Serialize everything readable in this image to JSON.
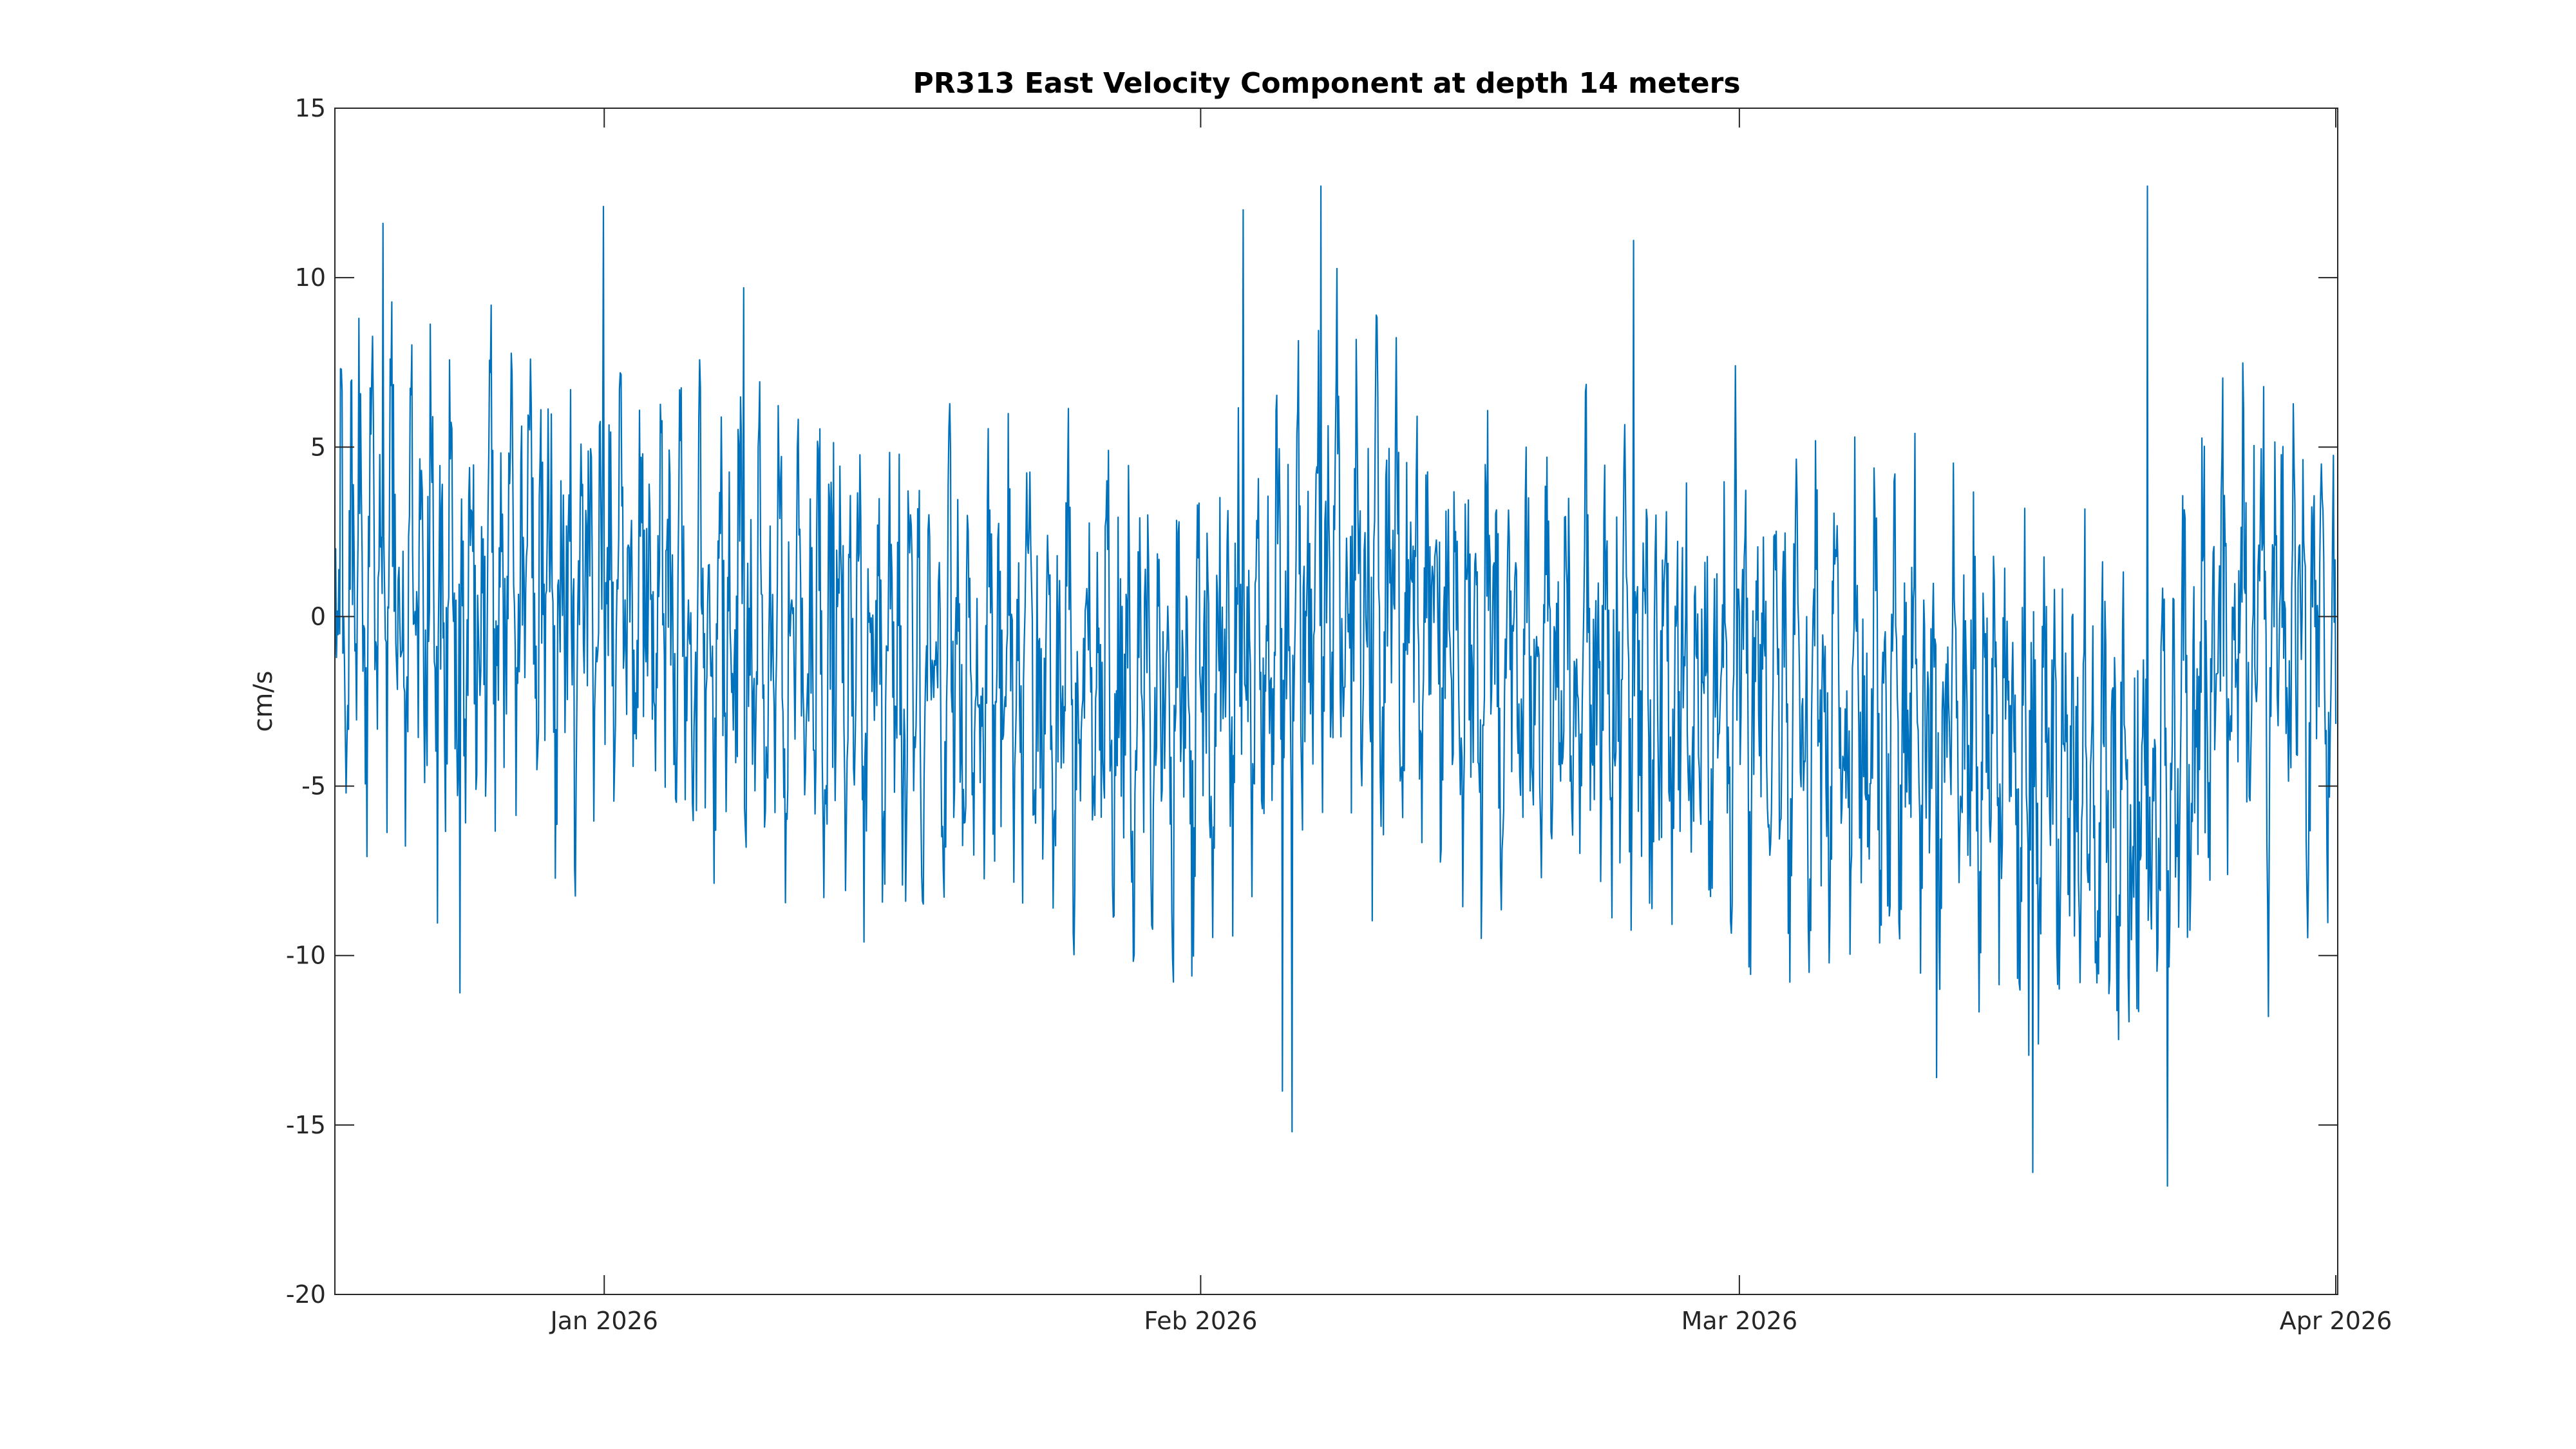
{
  "chart_data": {
    "type": "line",
    "title": "PR313 East Velocity Component at depth 14 meters",
    "xlabel": "",
    "ylabel": "cm/s",
    "x_range": [
      "2025-12-18",
      "2026-04-01"
    ],
    "ylim": [
      -20,
      15
    ],
    "y_ticks": [
      15,
      10,
      5,
      0,
      -5,
      -10,
      -15,
      -20
    ],
    "x_ticks": [
      {
        "date": "2026-01-01",
        "label": "Jan 2026"
      },
      {
        "date": "2026-02-01",
        "label": "Feb 2026"
      },
      {
        "date": "2026-03-01",
        "label": "Mar 2026"
      },
      {
        "date": "2026-04-01",
        "label": "Apr 2026"
      }
    ],
    "grid": false,
    "legend": "none",
    "color": "#0072bd",
    "sampling": "hourly",
    "series": [
      {
        "x_start": "2025-12-18T00:00",
        "x_end": "2026-04-01T00:00",
        "amplitude": 6.5,
        "y_min_observed": -16.8,
        "y_max_observed": 12.7,
        "trend": [
          {
            "date": "2025-12-18",
            "value": 1.0
          },
          {
            "date": "2026-01-01",
            "value": 0.5
          },
          {
            "date": "2026-01-15",
            "value": -1.5
          },
          {
            "date": "2026-02-01",
            "value": -2.5
          },
          {
            "date": "2026-02-08",
            "value": 1.5
          },
          {
            "date": "2026-02-15",
            "value": -1.0
          },
          {
            "date": "2026-03-01",
            "value": -2.5
          },
          {
            "date": "2026-03-15",
            "value": -3.5
          },
          {
            "date": "2026-03-22",
            "value": -6.0
          },
          {
            "date": "2026-03-27",
            "value": 0.0
          },
          {
            "date": "2026-04-01",
            "value": -1.0
          }
        ],
        "extremes": [
          {
            "date": "2025-12-19T06:00",
            "value": 8.8
          },
          {
            "date": "2025-12-20T12:00",
            "value": 11.6
          },
          {
            "date": "2025-12-24T12:00",
            "value": -11.1
          },
          {
            "date": "2025-12-31T23:00",
            "value": 12.1
          },
          {
            "date": "2026-01-08T06:00",
            "value": 9.7
          },
          {
            "date": "2026-02-03T05:00",
            "value": 12.0
          },
          {
            "date": "2026-02-05T06:00",
            "value": -14.0
          },
          {
            "date": "2026-02-05T18:00",
            "value": -15.2
          },
          {
            "date": "2026-02-07T06:00",
            "value": 12.7
          },
          {
            "date": "2026-02-23T12:00",
            "value": 11.1
          },
          {
            "date": "2026-03-11T06:00",
            "value": -13.6
          },
          {
            "date": "2026-03-16T06:00",
            "value": -16.4
          },
          {
            "date": "2026-03-22T05:00",
            "value": 12.7
          },
          {
            "date": "2026-03-23T06:00",
            "value": -16.8
          },
          {
            "date": "2026-03-28T12:00",
            "value": -11.8
          }
        ]
      }
    ]
  }
}
